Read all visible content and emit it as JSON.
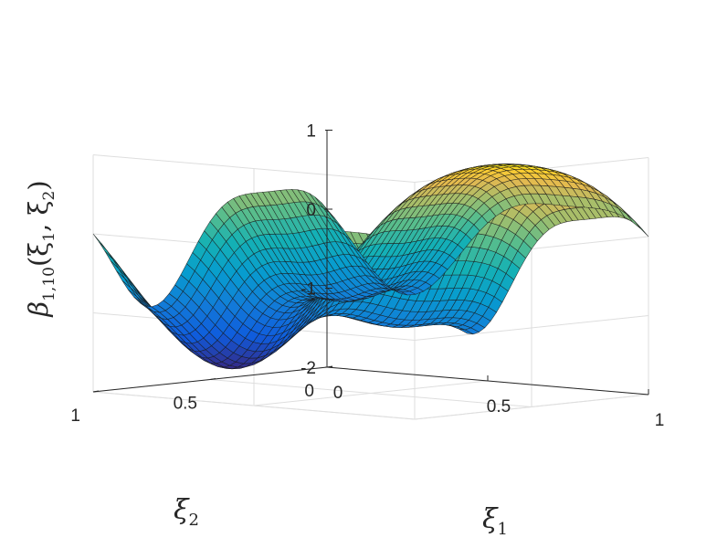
{
  "chart_data": {
    "type": "surface",
    "function": "beta_{1,10}(xi1, xi2)",
    "xlabel": {
      "symbol": "ξ",
      "sub": "1"
    },
    "ylabel": {
      "symbol": "ξ",
      "sub": "2"
    },
    "zlabel": {
      "symbol": "β",
      "sub": "1,10",
      "args": "(ξ",
      "a1": "1",
      "sep": ", ξ",
      "a2": "2",
      "close": ")"
    },
    "xlim": [
      0,
      1
    ],
    "ylim": [
      0,
      1
    ],
    "zlim": [
      -2,
      1
    ],
    "xticks": [
      {
        "v": 0,
        "label": "0"
      },
      {
        "v": 0.5,
        "label": "0.5"
      },
      {
        "v": 1,
        "label": "1"
      }
    ],
    "yticks": [
      {
        "v": 0,
        "label": "0"
      },
      {
        "v": 0.5,
        "label": "0.5"
      },
      {
        "v": 1,
        "label": "1"
      }
    ],
    "zticks": [
      {
        "v": -2,
        "label": "-2"
      },
      {
        "v": -1,
        "label": "-1"
      },
      {
        "v": 0,
        "label": "0"
      },
      {
        "v": 1,
        "label": "1"
      }
    ],
    "grid": true,
    "colormap": "parula",
    "mesh": 40,
    "features": [
      {
        "kind": "peak",
        "xi1": 0.25,
        "xi2": 0.75,
        "value": 0.95
      },
      {
        "kind": "peak",
        "xi1": 0.75,
        "xi2": 0.25,
        "value": 0.95
      },
      {
        "kind": "trough",
        "xi1": 0.75,
        "xi2": 0.75,
        "value": -2.0
      },
      {
        "kind": "dip",
        "xi1": 0.25,
        "xi2": 0.25,
        "value": -0.3
      }
    ]
  }
}
